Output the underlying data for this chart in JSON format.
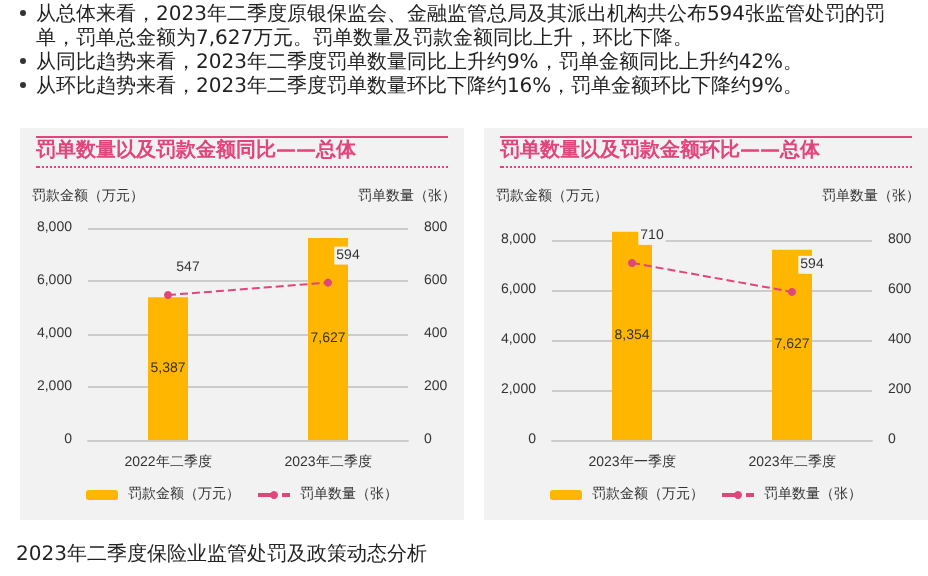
{
  "chart_data": [
    {
      "type": "bar",
      "title": "罚单数量以及罚款金额同比——总体",
      "annotations": [
        "从总体来看，2023年二季度原银保监会、金融监管总局及其派出机构共公布594张监管处罚的罚单，罚单总金额为7,627万元。罚单数量及罚款金额同比上升，环比下降。",
        "从同比趋势来看，2023年二季度罚单数量同比上升约9%，罚单金额同比上升约42%。",
        "从环比趋势来看，2023年二季度罚单数量环比下降约16%，罚单金额环比下降约9%。"
      ],
      "categories": [
        "2022年二季度",
        "2023年二季度"
      ],
      "ylabel": "罚款金额（万元）",
      "y2label": "罚单数量（张）",
      "series": [
        {
          "name": "罚款金额（万元）",
          "color": "#ffb600",
          "values": [
            5387,
            7627
          ],
          "value_labels": [
            "5,387",
            "7,627"
          ]
        },
        {
          "name": "罚单数量（张）",
          "type": "line",
          "axis": "y2",
          "color": "#e0457b",
          "values": [
            547,
            594
          ],
          "line_style": "dashed",
          "marker": "circle"
        }
      ],
      "ylim": [
        0,
        8000
      ],
      "yticks": [
        0,
        {
          "value": 2000,
          "label": "2,000"
        },
        {
          "value": 4000,
          "label": "4,000"
        },
        {
          "value": 6000,
          "label": "6,000"
        },
        {
          "value": 8000,
          "label": "8,000"
        }
      ],
      "y2lim": [
        0,
        800
      ],
      "y2ticks": [
        0,
        200,
        400,
        600,
        800
      ],
      "grid": "y",
      "legend": "bottom",
      "data_labels": true
    },
    {
      "type": "bar",
      "title": "罚单数量以及罚款金额环比——总体",
      "annotations": [
        "2023年二季度保险业监管处罚及政策动态分析"
      ],
      "categories": [
        "2023年一季度",
        "2023年二季度"
      ],
      "ylabel": "罚款金额（万元）",
      "y2label": "罚单数量（张）",
      "series": [
        {
          "name": "罚款金额（万元）",
          "color": "#ffb600",
          "values": [
            8354,
            7627
          ],
          "value_labels": [
            "8,354",
            "7,627"
          ]
        },
        {
          "name": "罚单数量（张）",
          "type": "line",
          "axis": "y2",
          "color": "#e0457b",
          "values": [
            710,
            594
          ],
          "line_style": "dashed",
          "marker": "circle"
        }
      ],
      "ylim": [
        0,
        8500
      ],
      "yticks": [
        0,
        {
          "value": 2000,
          "label": "2,000"
        },
        {
          "value": 4000,
          "label": "4,000"
        },
        {
          "value": 6000,
          "label": "6,000"
        },
        {
          "value": 8000,
          "label": "8,000"
        }
      ],
      "y2lim": [
        0,
        850
      ],
      "y2ticks": [
        0,
        200,
        400,
        600,
        800
      ],
      "grid": "y",
      "legend": "bottom",
      "data_labels": true
    }
  ]
}
